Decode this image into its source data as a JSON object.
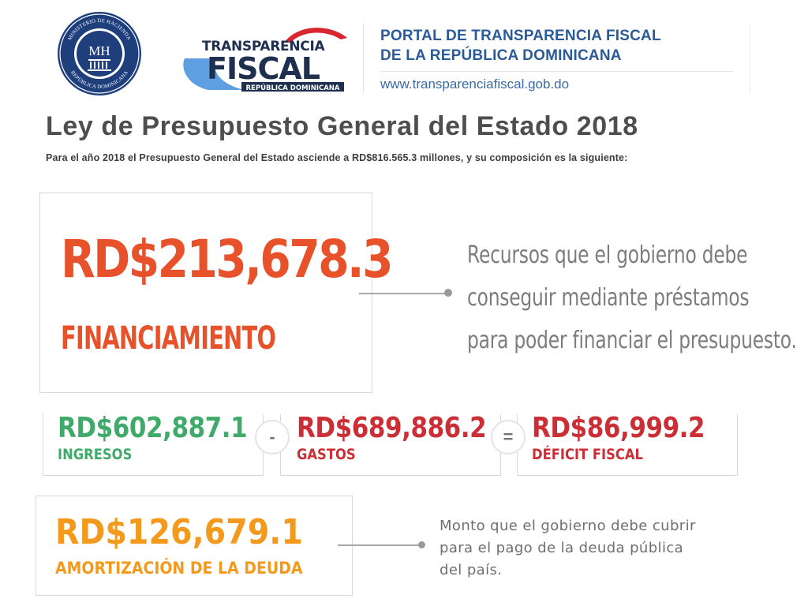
{
  "header": {
    "seal": {
      "monogram": "MH",
      "ring_text_top": "MINISTERIO DE HACIENDA",
      "ring_text_bottom": "REPÚBLICA DOMINICANA"
    },
    "logo": {
      "line1": "TRANSPARENCIA",
      "line2": "FISCAL",
      "line3": "REPÚBLICA DOMINICANA"
    },
    "portal_title_line1": "PORTAL DE TRANSPARENCIA FISCAL",
    "portal_title_line2": "DE LA REPÚBLICA DOMINICANA",
    "portal_url": "www.transparenciafiscal.gob.do"
  },
  "page": {
    "title": "Ley de Presupuesto General del Estado 2018",
    "subtitle": "Para el año 2018 el Presupuesto General del Estado asciende a RD$816.565.3 millones, y su composición es la siguiente:"
  },
  "financiamiento": {
    "amount": "RD$213,678.3",
    "label": "FINANCIAMIENTO",
    "description": [
      "Recursos que el gobierno debe",
      "conseguir mediante préstamos",
      "para poder financiar el presupuesto."
    ]
  },
  "equation": {
    "ingresos": {
      "amount": "RD$602,887.1",
      "label": "INGRESOS"
    },
    "operator_minus": "-",
    "gastos": {
      "amount": "RD$689,886.2",
      "label": "GASTOS"
    },
    "operator_equals": "=",
    "deficit": {
      "amount": "RD$86,999.2",
      "label": "DÉFICIT FISCAL"
    }
  },
  "amortizacion": {
    "amount": "RD$126,679.1",
    "label": "AMORTIZACIÓN DE LA DEUDA",
    "description": [
      "Monto que el gobierno debe cubrir",
      "para el pago de la deuda pública",
      "del país."
    ]
  },
  "colors": {
    "orange_red": "#e8522a",
    "green": "#3faa6a",
    "red": "#cc2e36",
    "orange": "#f39a1d",
    "portal_blue": "#2a5a98",
    "seal_navy": "#1e3f7c"
  }
}
